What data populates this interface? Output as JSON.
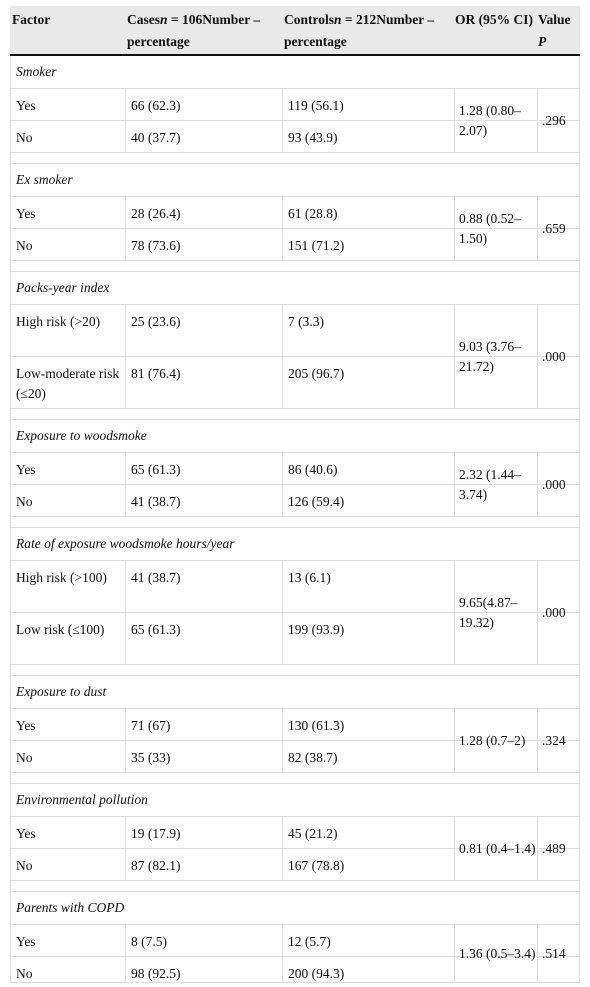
{
  "header": {
    "factor": "Factor",
    "cases": "Casesn = 106Number – percentage",
    "controls": "Controlsn = 212Number – percentage",
    "or": "OR (95% CI)",
    "p": "Value P"
  },
  "sections": [
    {
      "title": "Smoker",
      "rows": [
        {
          "label": "Yes",
          "cases": "66 (62.3)",
          "controls": "119 (56.1)"
        },
        {
          "label": "No",
          "cases": "40 (37.7)",
          "controls": "93 (43.9)"
        }
      ],
      "or": "1.28 (0.80–2.07)",
      "p": ".296"
    },
    {
      "title": "Ex smoker",
      "rows": [
        {
          "label": "Yes",
          "cases": "28 (26.4)",
          "controls": "61 (28.8)"
        },
        {
          "label": "No",
          "cases": "78 (73.6)",
          "controls": "151 (71.2)"
        }
      ],
      "or": "0.88 (0.52–1.50)",
      "p": ".659"
    },
    {
      "title": "Packs-year index",
      "rows": [
        {
          "label": "High risk (>20)",
          "cases": "25 (23.6)",
          "controls": "7 (3.3)"
        },
        {
          "label": "Low-moderate risk (≤20)",
          "cases": "81 (76.4)",
          "controls": "205 (96.7)"
        }
      ],
      "or": "9.03 (3.76–21.72)",
      "p": ".000"
    },
    {
      "title": "Exposure to woodsmoke",
      "rows": [
        {
          "label": "Yes",
          "cases": "65 (61.3)",
          "controls": "86 (40.6)"
        },
        {
          "label": "No",
          "cases": "41 (38.7)",
          "controls": "126 (59.4)"
        }
      ],
      "or": "2.32 (1.44–3.74)",
      "p": ".000"
    },
    {
      "title": "Rate of exposure woodsmoke hours/year",
      "rows": [
        {
          "label": "High risk (>100)",
          "cases": "41 (38.7)",
          "controls": "13 (6.1)"
        },
        {
          "label": "Low risk (≤100)",
          "cases": "65 (61.3)",
          "controls": "199 (93.9)"
        }
      ],
      "or": "9.65(4.87–19.32)",
      "p": ".000"
    },
    {
      "title": "Exposure to dust",
      "rows": [
        {
          "label": "Yes",
          "cases": "71 (67)",
          "controls": "130 (61.3)"
        },
        {
          "label": "No",
          "cases": "35 (33)",
          "controls": "82 (38.7)"
        }
      ],
      "or": "1.28 (0.7–2)",
      "p": ".324"
    },
    {
      "title": "Environmental pollution",
      "rows": [
        {
          "label": "Yes",
          "cases": "19 (17.9)",
          "controls": "45 (21.2)"
        },
        {
          "label": "No",
          "cases": "87 (82.1)",
          "controls": "167 (78.8)"
        }
      ],
      "or": "0.81 (0.4–1.4)",
      "p": ".489"
    },
    {
      "title": "Parents with COPD",
      "rows": [
        {
          "label": "Yes",
          "cases": "8 (7.5)",
          "controls": "12 (5.7)"
        },
        {
          "label": "No",
          "cases": "98 (92.5)",
          "controls": "200 (94.3)"
        }
      ],
      "or": "1.36 (0.5–3.4)",
      "p": ".514"
    }
  ]
}
